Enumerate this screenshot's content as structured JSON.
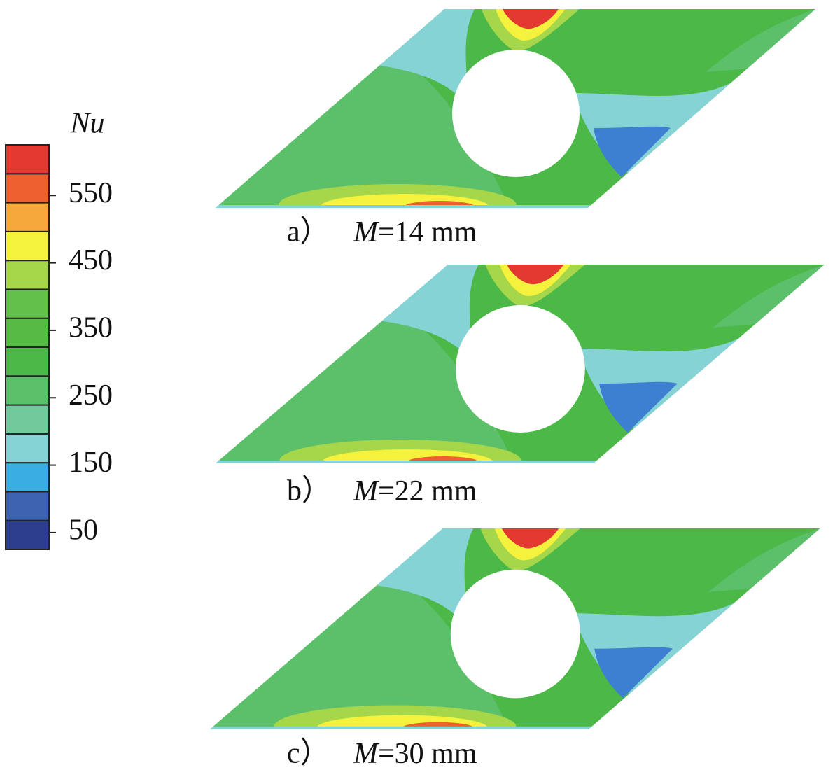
{
  "colorbar": {
    "title": "Nu",
    "colors": [
      "#2d3e8f",
      "#3d62b0",
      "#3aaee3",
      "#86d3d6",
      "#72c99c",
      "#5cbf6a",
      "#4cb848",
      "#55bb45",
      "#63c04a",
      "#a6d64a",
      "#f4f23c",
      "#f7a83a",
      "#ee6030",
      "#e23a30"
    ],
    "lim": [
      25,
      625
    ],
    "ticks": [
      50,
      150,
      250,
      350,
      450,
      550
    ]
  },
  "panels": [
    {
      "label": "a）",
      "symbol": "M",
      "text": "=14 mm"
    },
    {
      "label": "b）",
      "symbol": "M",
      "text": "=22 mm"
    },
    {
      "label": "c）",
      "symbol": "M",
      "text": "=30 mm"
    }
  ]
}
